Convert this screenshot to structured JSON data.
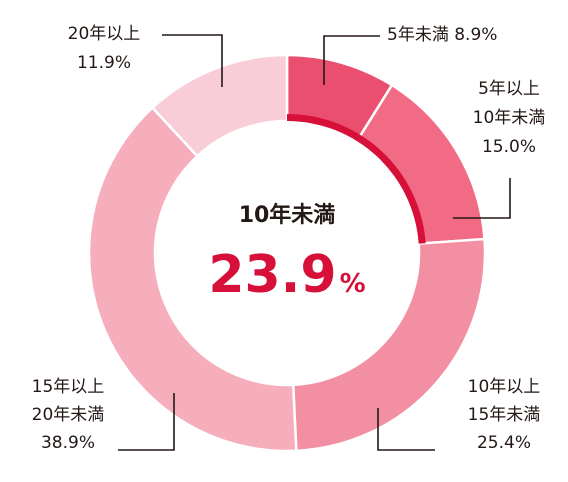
{
  "chart_data": {
    "type": "pie",
    "categories": [
      "5年未満",
      "5年以上10年未満",
      "10年以上15年未満",
      "15年以上20年未満",
      "20年以上"
    ],
    "values": [
      8.9,
      15.0,
      25.4,
      38.9,
      11.9
    ],
    "unit": "%",
    "colors": [
      "#ea4f6f",
      "#f26b85",
      "#f38fa3",
      "#f6aebd",
      "#f8cdd7"
    ],
    "highlight_color": "#d7103a",
    "labels": [
      {
        "lines": [
          "5年未満 8.9%"
        ]
      },
      {
        "lines": [
          "5年以上",
          "10年未満",
          "15.0%"
        ]
      },
      {
        "lines": [
          "10年以上",
          "15年未満",
          "25.4%"
        ]
      },
      {
        "lines": [
          "15年以上",
          "20年未満",
          "38.9%"
        ]
      },
      {
        "lines": [
          "20年以上",
          "11.9%"
        ]
      }
    ],
    "center": {
      "title": "10年未満",
      "value": "23.9",
      "unit": "%"
    }
  }
}
